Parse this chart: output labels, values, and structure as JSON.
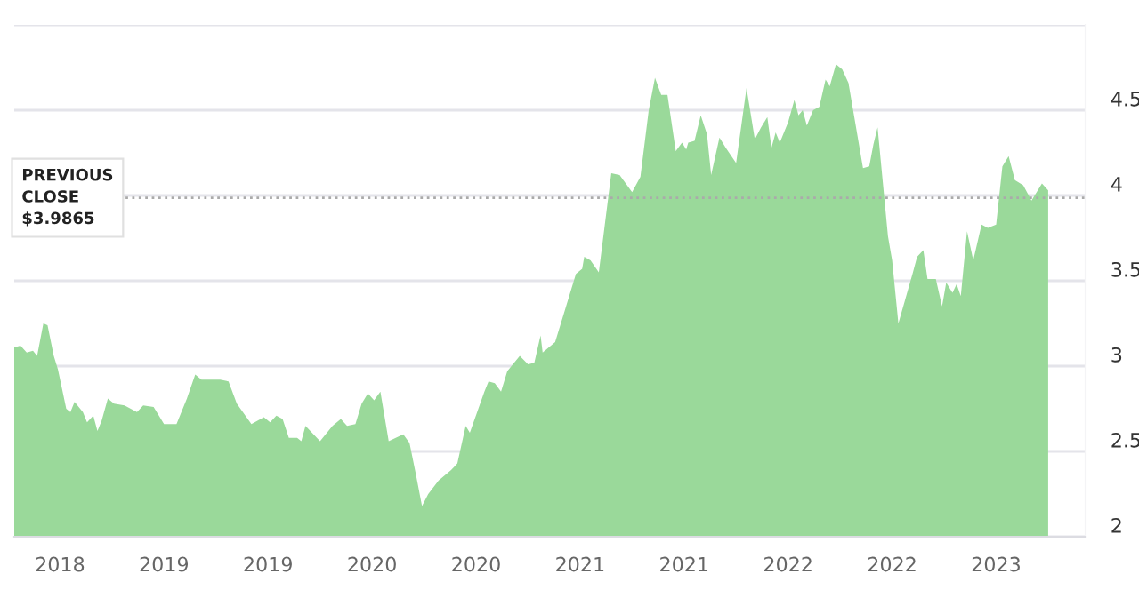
{
  "chart_data": {
    "type": "area",
    "x": [
      2018.28,
      2018.31,
      2018.34,
      2018.37,
      2018.39,
      2018.42,
      2018.44,
      2018.47,
      2018.49,
      2018.53,
      2018.55,
      2018.57,
      2018.61,
      2018.63,
      2018.66,
      2018.68,
      2018.7,
      2018.73,
      2018.76,
      2018.81,
      2018.87,
      2018.9,
      2018.95,
      2019.0,
      2019.06,
      2019.11,
      2019.15,
      2019.18,
      2019.22,
      2019.27,
      2019.31,
      2019.35,
      2019.42,
      2019.48,
      2019.51,
      2019.54,
      2019.57,
      2019.6,
      2019.64,
      2019.66,
      2019.68,
      2019.75,
      2019.81,
      2019.85,
      2019.88,
      2019.92,
      2019.95,
      2019.98,
      2020.01,
      2020.04,
      2020.08,
      2020.15,
      2020.18,
      2020.21,
      2020.24,
      2020.27,
      2020.32,
      2020.38,
      2020.41,
      2020.45,
      2020.47,
      2020.54,
      2020.56,
      2020.59,
      2020.62,
      2020.65,
      2020.71,
      2020.75,
      2020.78,
      2020.81,
      2020.82,
      2020.88,
      2020.93,
      2020.98,
      2021.01,
      2021.02,
      2021.05,
      2021.09,
      2021.15,
      2021.19,
      2021.25,
      2021.29,
      2021.33,
      2021.36,
      2021.39,
      2021.42,
      2021.46,
      2021.49,
      2021.51,
      2021.52,
      2021.55,
      2021.58,
      2021.61,
      2021.63,
      2021.67,
      2021.7,
      2021.75,
      2021.8,
      2021.84,
      2021.87,
      2021.9,
      2021.92,
      2021.94,
      2021.96,
      2022.0,
      2022.03,
      2022.05,
      2022.07,
      2022.09,
      2022.12,
      2022.15,
      2022.18,
      2022.2,
      2022.23,
      2022.26,
      2022.29,
      2022.36,
      2022.39,
      2022.41,
      2022.43,
      2022.48,
      2022.5,
      2022.53,
      2022.6,
      2022.62,
      2022.65,
      2022.67,
      2022.71,
      2022.74,
      2022.76,
      2022.79,
      2022.81,
      2022.83,
      2022.86,
      2022.89,
      2022.93,
      2022.96,
      2023.0,
      2023.03,
      2023.06,
      2023.09,
      2023.13,
      2023.17,
      2023.22,
      2023.25
    ],
    "series": [
      {
        "color": "#9ad99a",
        "values": [
          3.11,
          3.12,
          3.08,
          3.09,
          3.06,
          3.25,
          3.24,
          3.06,
          2.98,
          2.75,
          2.73,
          2.79,
          2.73,
          2.67,
          2.71,
          2.62,
          2.68,
          2.81,
          2.78,
          2.77,
          2.73,
          2.77,
          2.76,
          2.66,
          2.66,
          2.81,
          2.95,
          2.92,
          2.92,
          2.92,
          2.91,
          2.78,
          2.66,
          2.7,
          2.67,
          2.71,
          2.69,
          2.58,
          2.58,
          2.56,
          2.65,
          2.56,
          2.65,
          2.69,
          2.65,
          2.66,
          2.78,
          2.84,
          2.8,
          2.85,
          2.56,
          2.6,
          2.55,
          2.37,
          2.18,
          2.25,
          2.33,
          2.39,
          2.43,
          2.65,
          2.61,
          2.85,
          2.91,
          2.9,
          2.85,
          2.97,
          3.06,
          3.01,
          3.02,
          3.18,
          3.08,
          3.14,
          3.34,
          3.54,
          3.57,
          3.64,
          3.62,
          3.55,
          4.13,
          4.12,
          4.02,
          4.11,
          4.5,
          4.69,
          4.59,
          4.59,
          4.26,
          4.31,
          4.27,
          4.31,
          4.32,
          4.47,
          4.36,
          4.12,
          4.34,
          4.28,
          4.19,
          4.63,
          4.33,
          4.4,
          4.46,
          4.28,
          4.37,
          4.31,
          4.43,
          4.56,
          4.47,
          4.5,
          4.41,
          4.5,
          4.52,
          4.68,
          4.64,
          4.77,
          4.74,
          4.66,
          4.16,
          4.17,
          4.3,
          4.4,
          3.76,
          3.62,
          3.25,
          3.55,
          3.64,
          3.68,
          3.51,
          3.51,
          3.35,
          3.49,
          3.43,
          3.48,
          3.41,
          3.79,
          3.62,
          3.83,
          3.81,
          3.83,
          4.17,
          4.23,
          4.09,
          4.06,
          3.97,
          4.07,
          4.03
        ]
      }
    ],
    "xlim": [
      2018.28,
      2023.43
    ],
    "xticks": [
      {
        "value": 2018.5,
        "label": "2018"
      },
      {
        "value": 2019.0,
        "label": "2019"
      },
      {
        "value": 2019.5,
        "label": "2019"
      },
      {
        "value": 2020.0,
        "label": "2020"
      },
      {
        "value": 2020.5,
        "label": "2020"
      },
      {
        "value": 2021.0,
        "label": "2021"
      },
      {
        "value": 2021.5,
        "label": "2021"
      },
      {
        "value": 2022.0,
        "label": "2022"
      },
      {
        "value": 2022.5,
        "label": "2022"
      },
      {
        "value": 2023.0,
        "label": "2023"
      }
    ],
    "ylim": [
      2,
      5
    ],
    "yticks": [
      2,
      2.5,
      3,
      3.5,
      4,
      4.5,
      {
        "value": 5,
        "label": null
      }
    ],
    "grid": "y",
    "ref_lines": [
      {
        "axis": "y",
        "value": 3.9865,
        "label": "PREVIOUS\nCLOSE\n$3.9865",
        "color": "#aaaaaa",
        "line_style": "dotted"
      }
    ]
  }
}
